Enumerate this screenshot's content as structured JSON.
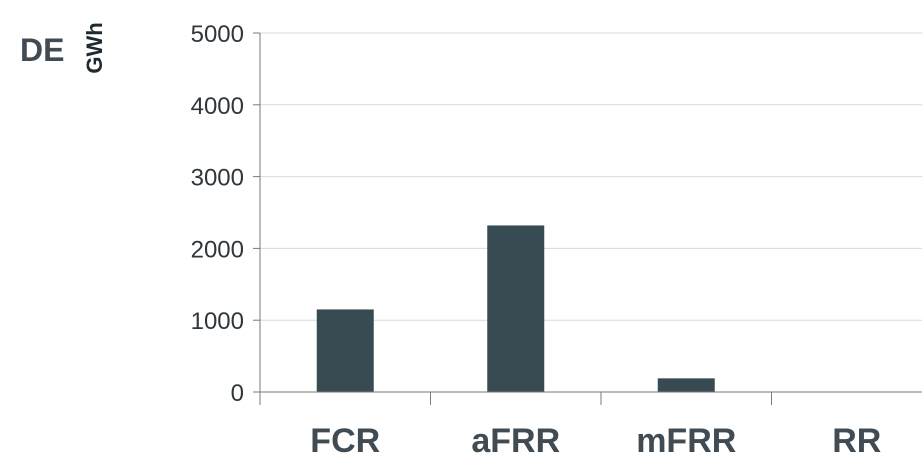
{
  "region": "DE",
  "unit": "GWh",
  "chart_data": {
    "type": "bar",
    "title": "",
    "xlabel": "",
    "ylabel": "GWh",
    "categories": [
      "FCR",
      "aFRR",
      "mFRR",
      "RR"
    ],
    "values": [
      1150,
      2320,
      190,
      0
    ],
    "ylim": [
      0,
      5000
    ],
    "yticks": [
      0,
      1000,
      2000,
      3000,
      4000,
      5000
    ],
    "grid": true,
    "colors": {
      "bar": "#384a52",
      "grid": "#d9d9d9",
      "axis": "#7a7a7a"
    }
  }
}
